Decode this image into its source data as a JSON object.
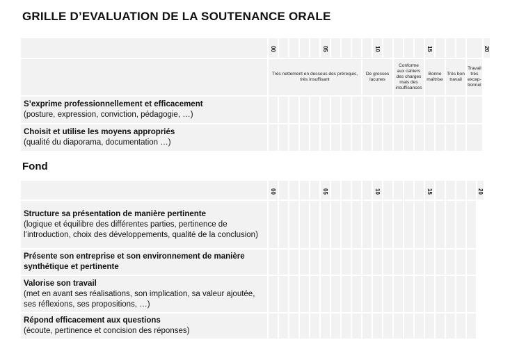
{
  "title": "GRILLE D’EVALUATION DE LA SOUTENANCE ORALE",
  "table1": {
    "ticks": [
      "00",
      "05",
      "10",
      "15",
      "20"
    ],
    "descriptors": [
      "Très nettement en dessous des prérequis, très insuffisant",
      "De grosses lacunes",
      "Conforme aux cahiers des charges mais des insuffisances",
      "Bonne maîtrise",
      "Très bon travail",
      "Travail très excep-tionnel"
    ],
    "criteria": [
      {
        "title": "S’exprime professionnellement et efficacement",
        "detail": "(posture, expression, conviction, pédagogie, …)"
      },
      {
        "title": "Choisit et utilise les moyens appropriés",
        "detail": "(qualité du diaporama, documentation …)"
      }
    ]
  },
  "section2": {
    "heading": "Fond"
  },
  "table2": {
    "ticks": [
      "00",
      "05",
      "10",
      "15",
      "20"
    ],
    "criteria": [
      {
        "title": "Structure sa présentation de manière pertinente",
        "detail": "(logique et équilibre des différentes parties, pertinence de l’introduction, choix des développements, qualité de la conclusion)"
      },
      {
        "title": "Présente son entreprise et son environnement de manière synthétique et pertinente",
        "detail": ""
      },
      {
        "title": "Valorise son travail",
        "detail": "(met en avant ses réalisations, son implication, sa valeur ajoutée, ses réflexions, ses propositions, …)"
      },
      {
        "title": "Répond efficacement aux questions",
        "detail": "(écoute, pertinence et concision des réponses)"
      }
    ]
  }
}
